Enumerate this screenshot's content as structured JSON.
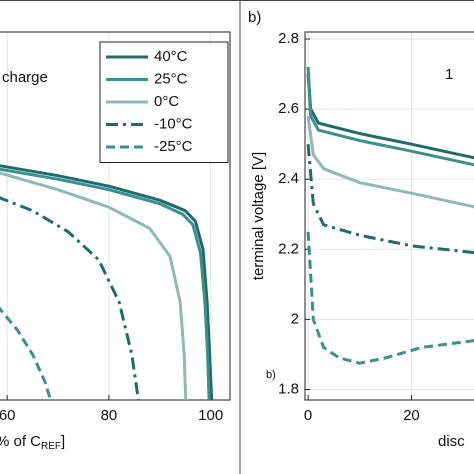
{
  "chart_data": [
    {
      "type": "line",
      "annotation": "charge",
      "xlabel_parts": [
        "% of C",
        "REF",
        "]"
      ],
      "xlim": [
        58.2,
        103.8
      ],
      "xticks": [
        60,
        80,
        100
      ],
      "ylim": [
        1.77,
        2.82
      ],
      "grid": true,
      "legend": "upper right",
      "series": [
        {
          "name": "40°C",
          "color": "#1f6b6b",
          "dash": "solid",
          "x": [
            58,
            70,
            80,
            90,
            95,
            97,
            98.5,
            99.3,
            99.8,
            100.2
          ],
          "values": [
            2.44,
            2.41,
            2.38,
            2.34,
            2.31,
            2.28,
            2.2,
            2.05,
            1.9,
            1.77
          ]
        },
        {
          "name": "25°C",
          "color": "#3a8f8f",
          "dash": "solid",
          "x": [
            58,
            70,
            80,
            90,
            94.5,
            96.5,
            98,
            98.9,
            99.4,
            99.7
          ],
          "values": [
            2.43,
            2.4,
            2.37,
            2.33,
            2.3,
            2.27,
            2.19,
            2.04,
            1.9,
            1.77
          ]
        },
        {
          "name": "0°C",
          "color": "#8fb8b8",
          "dash": "solid",
          "x": [
            58,
            70,
            80,
            88,
            92,
            94,
            94.8,
            95.1
          ],
          "values": [
            2.42,
            2.37,
            2.32,
            2.26,
            2.18,
            2.05,
            1.9,
            1.77
          ]
        },
        {
          "name": "-10°C",
          "color": "#1f6b6b",
          "dash": "dashdot",
          "x": [
            58,
            65,
            72,
            78,
            82,
            84.5,
            85.8
          ],
          "values": [
            2.35,
            2.31,
            2.25,
            2.17,
            2.05,
            1.9,
            1.77
          ]
        },
        {
          "name": "-25°C",
          "color": "#3a8f8f",
          "dash": "dashed",
          "x": [
            58,
            62,
            65,
            67.5,
            68.5
          ],
          "values": [
            2.04,
            1.97,
            1.9,
            1.82,
            1.77
          ]
        }
      ]
    },
    {
      "type": "line",
      "panel_label": "b)",
      "annotation": "1",
      "corner_label": "b)",
      "ylabel": "terminal voltage [V]",
      "xlabel": "disc",
      "xlim": [
        -0.6,
        32.5
      ],
      "xticks": [
        0,
        20
      ],
      "ylim": [
        1.77,
        2.82
      ],
      "yticks": [
        2.8,
        2.6,
        2.4,
        2.2,
        2,
        1.8
      ],
      "grid": true,
      "series": [
        {
          "color": "#1f6b6b",
          "dash": "solid",
          "x": [
            0,
            0.5,
            2,
            10,
            20,
            32.5
          ],
          "values": [
            2.7,
            2.6,
            2.56,
            2.53,
            2.5,
            2.46
          ]
        },
        {
          "color": "#3a8f8f",
          "dash": "solid",
          "x": [
            0,
            0.5,
            2,
            10,
            20,
            32.5
          ],
          "values": [
            2.72,
            2.58,
            2.54,
            2.51,
            2.48,
            2.44
          ]
        },
        {
          "color": "#8fb8b8",
          "dash": "solid",
          "x": [
            0,
            1,
            3,
            10,
            20,
            32.5
          ],
          "values": [
            2.58,
            2.47,
            2.43,
            2.39,
            2.36,
            2.32
          ]
        },
        {
          "color": "#1f6b6b",
          "dash": "dashdot",
          "x": [
            0,
            1,
            3,
            10,
            20,
            32.5
          ],
          "values": [
            2.5,
            2.33,
            2.27,
            2.24,
            2.21,
            2.19
          ]
        },
        {
          "color": "#3a8f8f",
          "dash": "dashed",
          "x": [
            0,
            1,
            3,
            6,
            10,
            15,
            22,
            32.5
          ],
          "values": [
            2.25,
            2.0,
            1.92,
            1.89,
            1.875,
            1.89,
            1.92,
            1.94
          ]
        }
      ]
    }
  ]
}
